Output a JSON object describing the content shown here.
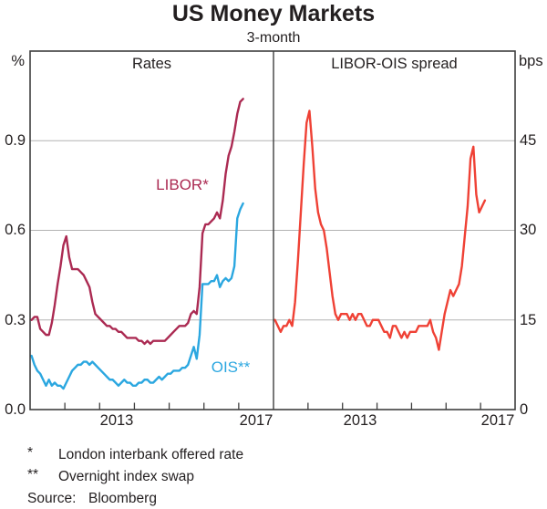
{
  "header": {
    "title": "US Money Markets",
    "subtitle": "3-month"
  },
  "panels": {
    "left_title": "Rates",
    "right_title": "LIBOR-OIS spread"
  },
  "axes": {
    "left_unit": "%",
    "right_unit": "bps",
    "left_tick_labels": [
      "0.9",
      "0.6",
      "0.3",
      "0.0"
    ],
    "right_tick_labels": [
      "45",
      "30",
      "15",
      "0"
    ],
    "left_panel_year_labels": [
      "2013",
      "2017"
    ],
    "right_panel_year_labels": [
      "2013",
      "2017"
    ]
  },
  "series_labels": {
    "libor": "LIBOR*",
    "ois": "OIS**"
  },
  "footnotes": [
    {
      "marker": "*",
      "text": "London interbank offered rate"
    },
    {
      "marker": "**",
      "text": "Overnight index swap"
    }
  ],
  "source": {
    "label": "Source:",
    "value": "Bloomberg"
  },
  "colors": {
    "libor": "#ab2a52",
    "ois": "#2ba7e0",
    "spread": "#ef4135",
    "grid": "#b3b3b3",
    "frame": "#3f3f3f",
    "text": "#231f20"
  },
  "chart_data": [
    {
      "type": "line",
      "panel": "left",
      "title": "Rates",
      "ylabel": "%",
      "ylim": [
        0,
        1.2
      ],
      "yticks": [
        0,
        0.3,
        0.6,
        0.9
      ],
      "x_range": [
        2011,
        2018
      ],
      "frequency": "monthly",
      "start": "2011-01",
      "end": "2017-02",
      "grid": true,
      "series": [
        {
          "name": "LIBOR*",
          "color": "#ab2a52",
          "values": [
            0.3,
            0.31,
            0.31,
            0.27,
            0.26,
            0.25,
            0.25,
            0.29,
            0.35,
            0.42,
            0.48,
            0.55,
            0.58,
            0.51,
            0.47,
            0.47,
            0.47,
            0.46,
            0.45,
            0.43,
            0.41,
            0.36,
            0.32,
            0.31,
            0.3,
            0.29,
            0.28,
            0.28,
            0.27,
            0.27,
            0.26,
            0.26,
            0.25,
            0.24,
            0.24,
            0.24,
            0.24,
            0.23,
            0.23,
            0.22,
            0.23,
            0.22,
            0.23,
            0.23,
            0.23,
            0.23,
            0.23,
            0.24,
            0.25,
            0.26,
            0.27,
            0.28,
            0.28,
            0.28,
            0.29,
            0.32,
            0.33,
            0.32,
            0.41,
            0.59,
            0.62,
            0.62,
            0.63,
            0.64,
            0.66,
            0.64,
            0.7,
            0.79,
            0.85,
            0.88,
            0.93,
            0.99,
            1.03,
            1.04
          ]
        },
        {
          "name": "OIS**",
          "color": "#2ba7e0",
          "values": [
            0.18,
            0.15,
            0.13,
            0.12,
            0.1,
            0.08,
            0.1,
            0.08,
            0.09,
            0.08,
            0.08,
            0.07,
            0.09,
            0.11,
            0.13,
            0.14,
            0.15,
            0.15,
            0.16,
            0.16,
            0.15,
            0.16,
            0.15,
            0.14,
            0.13,
            0.12,
            0.11,
            0.1,
            0.1,
            0.09,
            0.08,
            0.09,
            0.1,
            0.09,
            0.09,
            0.08,
            0.08,
            0.09,
            0.09,
            0.1,
            0.1,
            0.09,
            0.09,
            0.1,
            0.11,
            0.1,
            0.11,
            0.12,
            0.12,
            0.13,
            0.13,
            0.13,
            0.14,
            0.14,
            0.15,
            0.18,
            0.21,
            0.17,
            0.25,
            0.42,
            0.42,
            0.42,
            0.43,
            0.43,
            0.45,
            0.41,
            0.43,
            0.44,
            0.43,
            0.44,
            0.48,
            0.64,
            0.67,
            0.69
          ]
        }
      ]
    },
    {
      "type": "line",
      "panel": "right",
      "title": "LIBOR-OIS spread",
      "ylabel": "bps",
      "ylim": [
        0,
        60
      ],
      "yticks": [
        0,
        15,
        30,
        45
      ],
      "x_range": [
        2011,
        2018
      ],
      "frequency": "monthly",
      "start": "2011-01",
      "end": "2017-02",
      "grid": true,
      "series": [
        {
          "name": "LIBOR-OIS spread",
          "color": "#ef4135",
          "values": [
            15,
            14,
            13,
            14,
            14,
            15,
            14,
            18,
            25,
            33,
            41,
            48,
            50,
            44,
            37,
            33,
            31,
            30,
            27,
            23,
            19,
            16,
            15,
            16,
            16,
            16,
            15,
            16,
            15,
            16,
            16,
            15,
            14,
            14,
            15,
            15,
            15,
            14,
            13,
            13,
            12,
            14,
            14,
            13,
            12,
            13,
            12,
            13,
            13,
            13,
            14,
            14,
            14,
            14,
            15,
            13,
            12,
            10,
            13,
            16,
            18,
            20,
            19,
            20,
            21,
            24,
            29,
            34,
            42,
            44,
            36,
            33,
            34,
            35
          ]
        }
      ]
    }
  ]
}
